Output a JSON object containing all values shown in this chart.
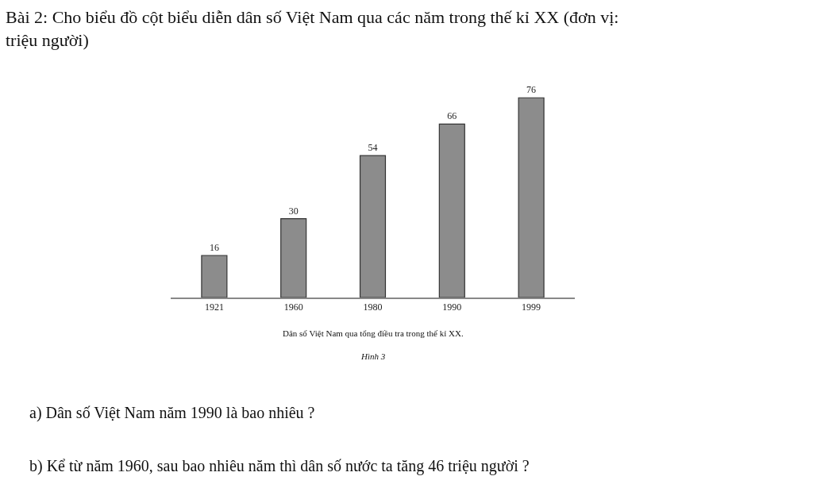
{
  "chart_data": {
    "type": "bar",
    "title": "Bài 2: Cho biểu đồ cột biểu diễn dân số Việt Nam qua các năm trong thế kỉ XX (đơn vị: triệu người)",
    "categories": [
      "1921",
      "1960",
      "1980",
      "1990",
      "1999"
    ],
    "values": [
      16,
      30,
      54,
      66,
      76
    ],
    "color": "#8c8c8c",
    "data_labels": true,
    "annotations": [
      "Dân số Việt Nam qua tổng điều tra trong thế kỉ XX.",
      "Hình 3",
      "a) Dân số Việt Nam năm 1990 là bao nhiêu ?",
      "b) Kể từ năm 1960, sau bao nhiêu năm thì dân số nước ta tăng 46 triệu người ?"
    ]
  }
}
